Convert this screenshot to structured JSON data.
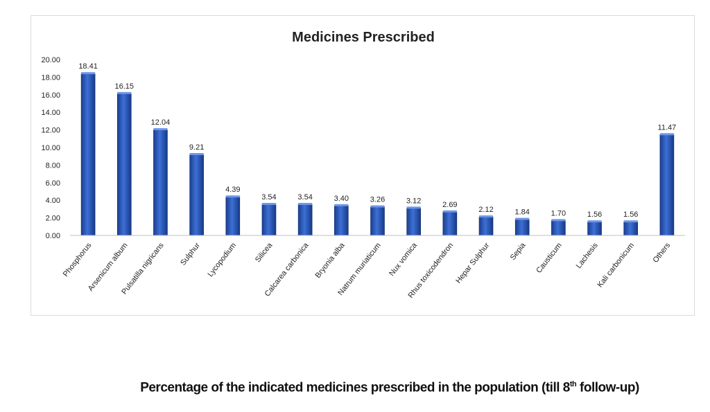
{
  "chart_data": {
    "type": "bar",
    "title": "Medicines Prescribed",
    "xlabel": "",
    "ylabel": "",
    "ylim": [
      0,
      20
    ],
    "yticks": [
      "0.00",
      "2.00",
      "4.00",
      "6.00",
      "8.00",
      "10.00",
      "12.00",
      "14.00",
      "16.00",
      "18.00",
      "20.00"
    ],
    "categories": [
      "Phosphorus",
      "Arsenicum album",
      "Pulsatilla nigricans",
      "Sulphur",
      "Lycopodium",
      "Silicea",
      "Calcarea carbonica",
      "Bryonia alba",
      "Natrum muriaticum",
      "Nux vomica",
      "Rhus toxicodendron",
      "Hepar Sulphur",
      "Sepia",
      "Causticum",
      "Lachesis",
      "Kali carbonicum",
      "Others"
    ],
    "values": [
      18.41,
      16.15,
      12.04,
      9.21,
      4.39,
      3.54,
      3.54,
      3.4,
      3.26,
      3.12,
      2.69,
      2.12,
      1.84,
      1.7,
      1.56,
      1.56,
      11.47
    ],
    "data_labels": [
      "18.41",
      "16.15",
      "12.04",
      "9.21",
      "4.39",
      "3.54",
      "3.54",
      "3.40",
      "3.26",
      "3.12",
      "2.69",
      "2.12",
      "1.84",
      "1.70",
      "1.56",
      "1.56",
      "11.47"
    ],
    "grid": false,
    "legend": "none",
    "bar_color": "#2f5dbf"
  },
  "caption": {
    "prefix": "Percentage of the indicated medicines prescribed in the population (till 8",
    "sup": "th",
    "suffix": " follow-up)"
  }
}
